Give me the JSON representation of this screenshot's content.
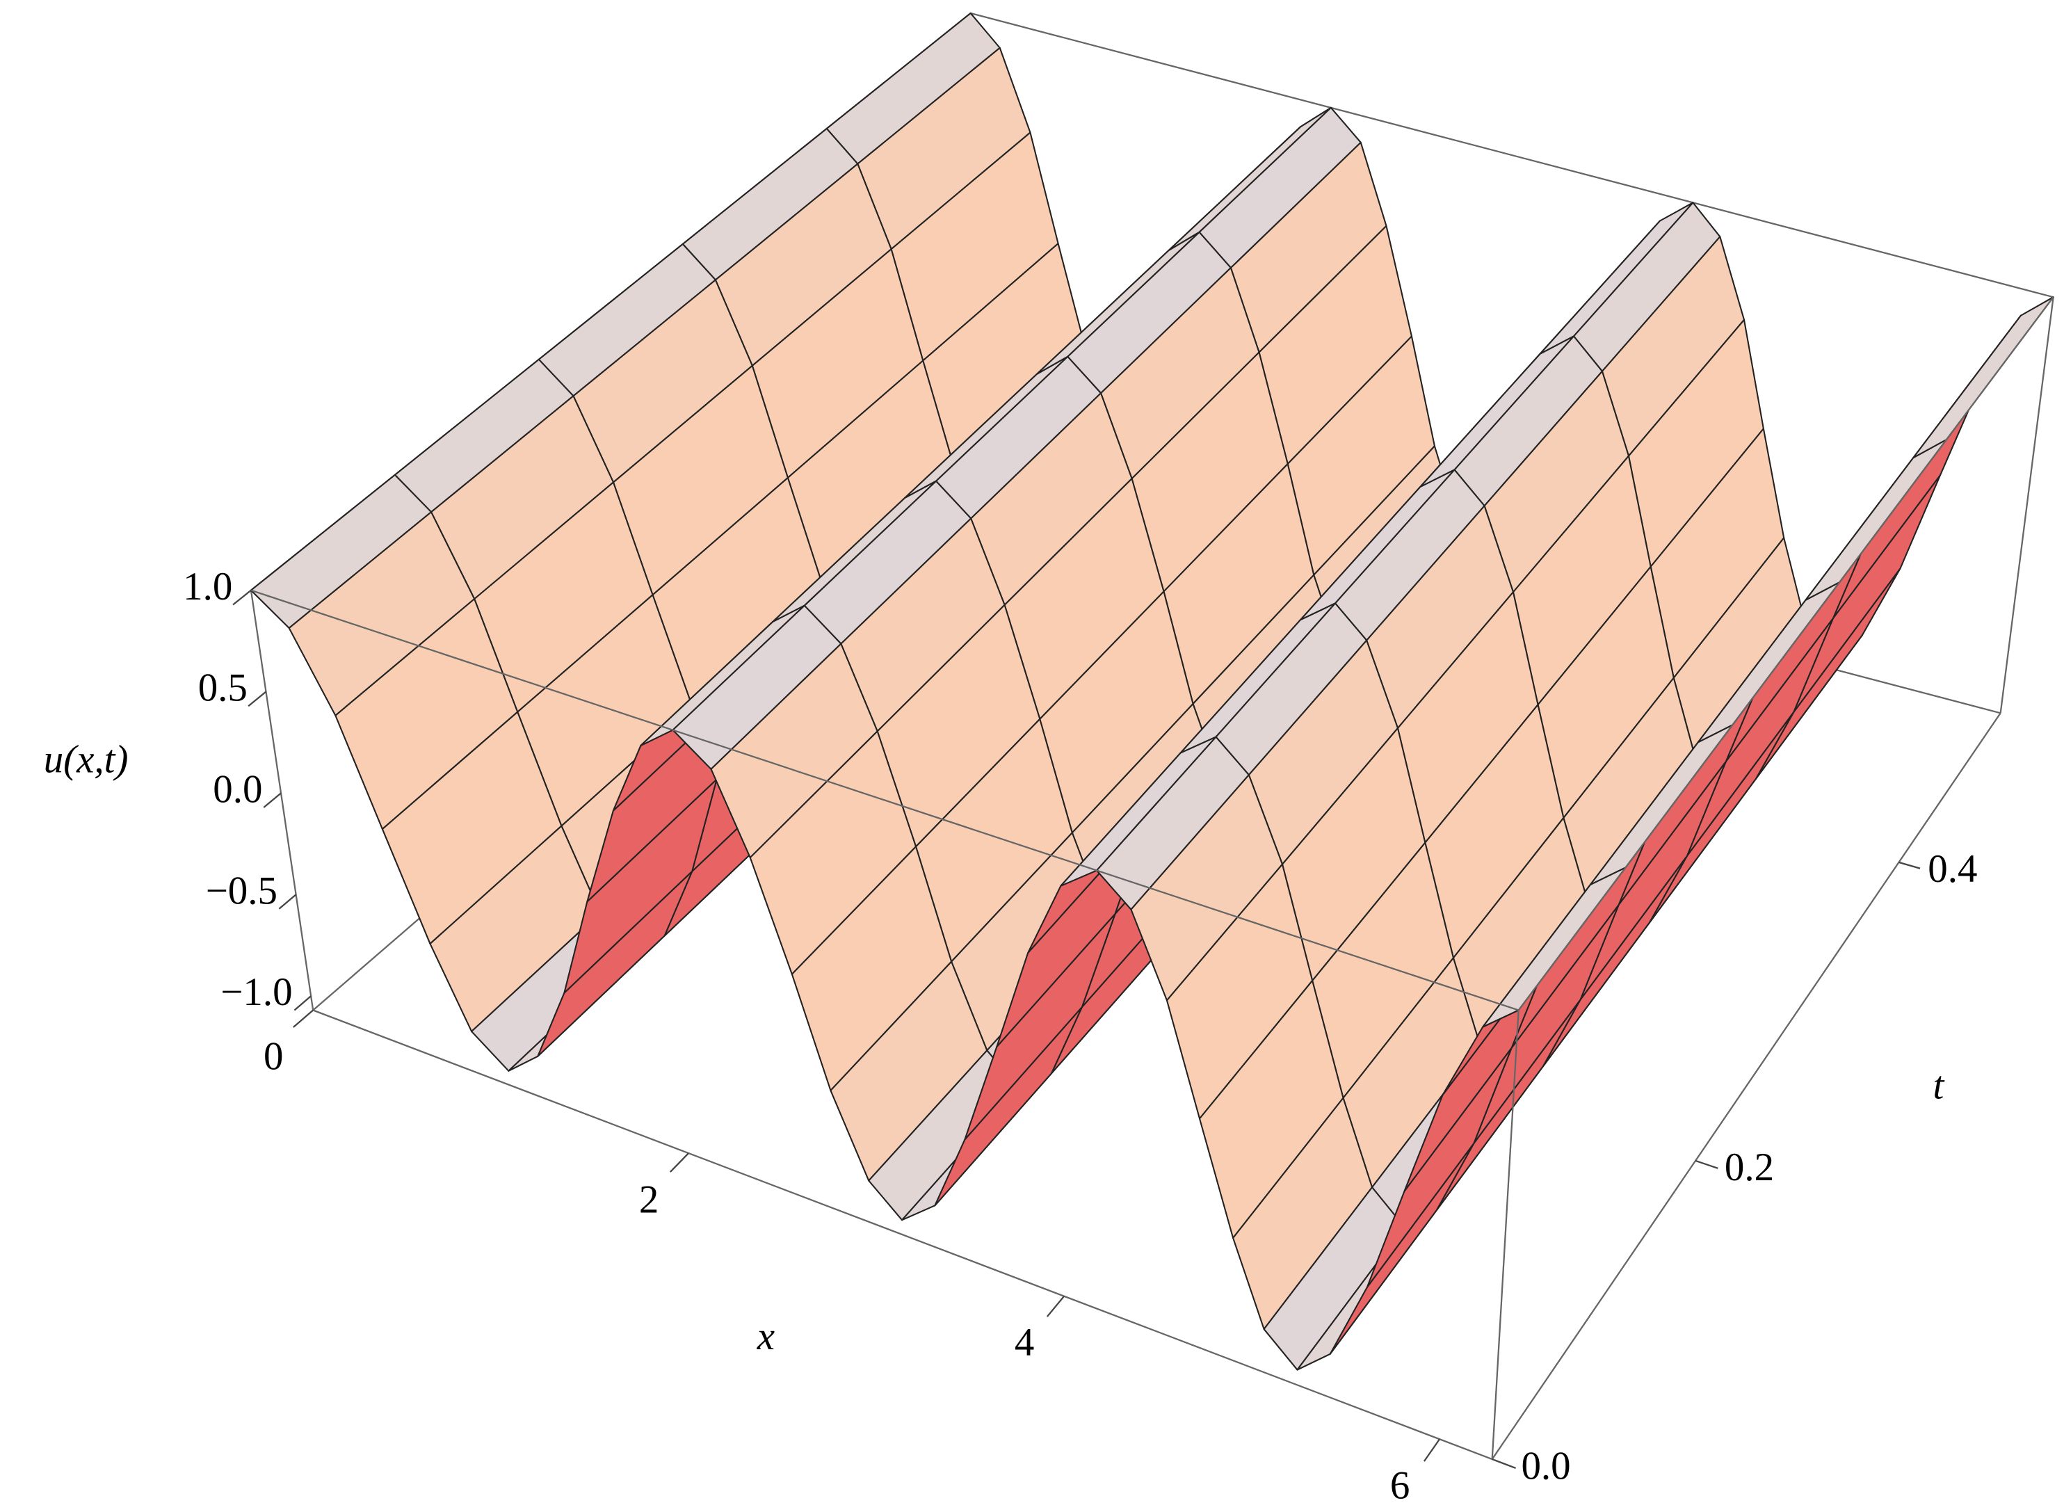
{
  "chart_data": {
    "type": "surface",
    "xlabel": "x",
    "tlabel": "t",
    "zlabel": "u(x,t)",
    "x": [
      0,
      0.17,
      0.35,
      0.52,
      0.7,
      0.87,
      1.05,
      1.22,
      1.4,
      1.57,
      1.75,
      1.92,
      2.09,
      2.27,
      2.44,
      2.62,
      2.79,
      2.97,
      3.14,
      3.32,
      3.49,
      3.67,
      3.84,
      4.01,
      4.19,
      4.36,
      4.54,
      4.71,
      4.89,
      5.06,
      5.24,
      5.41,
      5.59,
      5.76,
      5.93,
      6.11,
      6.28
    ],
    "t": [
      0,
      0.1,
      0.2,
      0.3,
      0.4,
      0.5
    ],
    "z": [
      [
        1,
        0.87,
        0.5,
        0,
        -0.5,
        -0.87,
        -1,
        -0.87,
        -0.5,
        0,
        0.5,
        0.87,
        1,
        0.87,
        0.5,
        0,
        -0.5,
        -0.87,
        -1,
        -0.87,
        -0.5,
        0,
        0.5,
        0.87,
        1,
        0.87,
        0.5,
        0,
        -0.5,
        -0.87,
        -1,
        -0.87,
        -0.5,
        0,
        0.5,
        0.87,
        1
      ],
      [
        1,
        0.87,
        0.5,
        0,
        -0.5,
        -0.87,
        -1,
        -0.87,
        -0.5,
        0,
        0.5,
        0.87,
        1,
        0.87,
        0.5,
        0,
        -0.5,
        -0.87,
        -1,
        -0.87,
        -0.5,
        0,
        0.5,
        0.87,
        1,
        0.87,
        0.5,
        0,
        -0.5,
        -0.87,
        -1,
        -0.87,
        -0.5,
        0,
        0.5,
        0.87,
        1
      ],
      [
        1,
        0.87,
        0.5,
        0,
        -0.5,
        -0.87,
        -1,
        -0.87,
        -0.5,
        0,
        0.5,
        0.87,
        1,
        0.87,
        0.5,
        0,
        -0.5,
        -0.87,
        -1,
        -0.87,
        -0.5,
        0,
        0.5,
        0.87,
        1,
        0.87,
        0.5,
        0,
        -0.5,
        -0.87,
        -1,
        -0.87,
        -0.5,
        0,
        0.5,
        0.87,
        1
      ],
      [
        1,
        0.87,
        0.5,
        0,
        -0.5,
        -0.87,
        -1,
        -0.87,
        -0.5,
        0,
        0.5,
        0.87,
        1,
        0.87,
        0.5,
        0,
        -0.5,
        -0.87,
        -1,
        -0.87,
        -0.5,
        0,
        0.5,
        0.87,
        1,
        0.87,
        0.5,
        0,
        -0.5,
        -0.87,
        -1,
        -0.87,
        -0.5,
        0,
        0.5,
        0.87,
        1
      ],
      [
        1,
        0.87,
        0.5,
        0,
        -0.5,
        -0.87,
        -1,
        -0.87,
        -0.5,
        0,
        0.5,
        0.87,
        1,
        0.87,
        0.5,
        0,
        -0.5,
        -0.87,
        -1,
        -0.87,
        -0.5,
        0,
        0.5,
        0.87,
        1,
        0.87,
        0.5,
        0,
        -0.5,
        -0.87,
        -1,
        -0.87,
        -0.5,
        0,
        0.5,
        0.87,
        1
      ],
      [
        1,
        0.87,
        0.5,
        0,
        -0.5,
        -0.87,
        -1,
        -0.87,
        -0.5,
        0,
        0.5,
        0.87,
        1,
        0.87,
        0.5,
        0,
        -0.5,
        -0.87,
        -1,
        -0.87,
        -0.5,
        0,
        0.5,
        0.87,
        1,
        0.87,
        0.5,
        0,
        -0.5,
        -0.87,
        -1,
        -0.87,
        -0.5,
        0,
        0.5,
        0.87,
        1
      ]
    ],
    "xlim": [
      0,
      6.28
    ],
    "tlim": [
      0,
      0.5
    ],
    "zlim": [
      -1.07,
      1
    ],
    "xticks": [
      0,
      2,
      4,
      6
    ],
    "tticks": [
      {
        "value": 0,
        "label": "0.0"
      },
      {
        "value": 0.2,
        "label": "0.2"
      },
      {
        "value": 0.4,
        "label": "0.4"
      }
    ],
    "zticks": [
      {
        "value": 1,
        "label": "1.0"
      },
      {
        "value": 0.5,
        "label": "0.5"
      },
      {
        "value": 0,
        "label": "0.0"
      },
      {
        "value": -0.5,
        "label": "−0.5"
      },
      {
        "value": -1,
        "label": "−1.0"
      }
    ]
  }
}
